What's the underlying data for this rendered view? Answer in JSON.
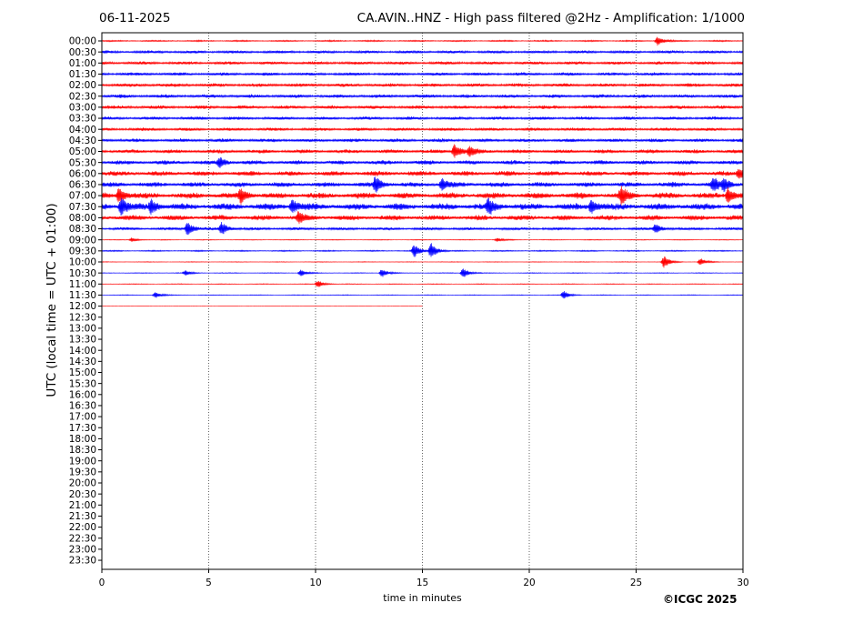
{
  "header": {
    "date": "06-11-2025",
    "title": "CA.AVIN..HNZ - High pass filtered @2Hz - Amplification: 1/1000"
  },
  "copyright": "©ICGC 2025",
  "chart_data": {
    "type": "line",
    "title": "CA.AVIN..HNZ - High pass filtered @2Hz - Amplification: 1/1000",
    "xlabel": "time in minutes",
    "ylabel": "UTC (local time = UTC + 01:00)",
    "xlim": [
      0,
      30
    ],
    "x_ticks": [
      0,
      5,
      10,
      15,
      20,
      25,
      30
    ],
    "grid": "vertical dotted at x ticks",
    "y_tick_labels": [
      "00:00",
      "00:30",
      "01:00",
      "01:30",
      "02:00",
      "02:30",
      "03:00",
      "03:30",
      "04:00",
      "04:30",
      "05:00",
      "05:30",
      "06:00",
      "06:30",
      "07:00",
      "07:30",
      "08:00",
      "08:30",
      "09:00",
      "09:30",
      "10:00",
      "10:30",
      "11:00",
      "11:30",
      "12:00",
      "12:30",
      "13:00",
      "13:30",
      "14:00",
      "14:30",
      "15:00",
      "15:30",
      "16:00",
      "16:30",
      "17:00",
      "17:30",
      "18:00",
      "18:30",
      "19:00",
      "19:30",
      "20:00",
      "20:30",
      "21:00",
      "21:30",
      "22:00",
      "22:30",
      "23:00",
      "23:30"
    ],
    "colors": {
      "even_rows": "#ff0000",
      "odd_rows": "#0000ff"
    },
    "series": [
      {
        "row": "00:00",
        "color": "red",
        "noise": 0.22,
        "start": 0,
        "end": 30,
        "events": [
          [
            26,
            1.2
          ]
        ]
      },
      {
        "row": "00:30",
        "color": "blue",
        "noise": 0.45,
        "start": 0,
        "end": 30,
        "events": []
      },
      {
        "row": "01:00",
        "color": "red",
        "noise": 0.5,
        "start": 0,
        "end": 30,
        "events": []
      },
      {
        "row": "01:30",
        "color": "blue",
        "noise": 0.5,
        "start": 0,
        "end": 30,
        "events": []
      },
      {
        "row": "02:00",
        "color": "red",
        "noise": 0.55,
        "start": 0,
        "end": 30,
        "events": []
      },
      {
        "row": "02:30",
        "color": "blue",
        "noise": 0.55,
        "start": 0,
        "end": 30,
        "events": []
      },
      {
        "row": "03:00",
        "color": "red",
        "noise": 0.55,
        "start": 0,
        "end": 30,
        "events": []
      },
      {
        "row": "03:30",
        "color": "blue",
        "noise": 0.5,
        "start": 0,
        "end": 30,
        "events": []
      },
      {
        "row": "04:00",
        "color": "red",
        "noise": 0.5,
        "start": 0,
        "end": 30,
        "events": []
      },
      {
        "row": "04:30",
        "color": "blue",
        "noise": 0.55,
        "start": 0,
        "end": 30,
        "events": []
      },
      {
        "row": "05:00",
        "color": "red",
        "noise": 0.6,
        "start": 0,
        "end": 30,
        "events": [
          [
            16.5,
            2.0
          ],
          [
            17.2,
            1.2
          ]
        ]
      },
      {
        "row": "05:30",
        "color": "blue",
        "noise": 0.65,
        "start": 0,
        "end": 30,
        "events": [
          [
            5.5,
            1.3
          ]
        ]
      },
      {
        "row": "06:00",
        "color": "red",
        "noise": 0.75,
        "start": 0,
        "end": 30,
        "events": [
          [
            29.8,
            1.4
          ]
        ]
      },
      {
        "row": "06:30",
        "color": "blue",
        "noise": 0.75,
        "start": 0,
        "end": 30,
        "events": [
          [
            12.8,
            2.0
          ],
          [
            15.9,
            1.5
          ],
          [
            28.6,
            1.8
          ],
          [
            29.1,
            1.5
          ]
        ]
      },
      {
        "row": "07:00",
        "color": "red",
        "noise": 0.9,
        "start": 0,
        "end": 30,
        "events": [
          [
            0.8,
            2.0
          ],
          [
            6.5,
            1.8
          ],
          [
            24.3,
            2.2
          ],
          [
            29.3,
            1.8
          ]
        ]
      },
      {
        "row": "07:30",
        "color": "blue",
        "noise": 1.0,
        "start": 0,
        "end": 30,
        "events": [
          [
            0.9,
            2.2
          ],
          [
            2.3,
            1.8
          ],
          [
            8.9,
            1.8
          ],
          [
            18.1,
            1.9
          ],
          [
            22.9,
            1.8
          ]
        ]
      },
      {
        "row": "08:00",
        "color": "red",
        "noise": 0.8,
        "start": 0,
        "end": 30,
        "events": [
          [
            9.2,
            1.4
          ]
        ]
      },
      {
        "row": "08:30",
        "color": "blue",
        "noise": 0.45,
        "start": 0,
        "end": 30,
        "events": [
          [
            4.0,
            1.8
          ],
          [
            5.6,
            1.6
          ],
          [
            25.9,
            1.2
          ]
        ]
      },
      {
        "row": "09:00",
        "color": "red",
        "noise": 0.12,
        "start": 0,
        "end": 30,
        "events": [
          [
            1.4,
            0.6
          ],
          [
            18.5,
            0.5
          ]
        ]
      },
      {
        "row": "09:30",
        "color": "blue",
        "noise": 0.2,
        "start": 0,
        "end": 30,
        "events": [
          [
            14.6,
            1.8
          ],
          [
            15.4,
            2.2
          ]
        ]
      },
      {
        "row": "10:00",
        "color": "red",
        "noise": 0.1,
        "start": 0,
        "end": 30,
        "events": [
          [
            26.3,
            1.6
          ],
          [
            28.0,
            1.0
          ]
        ]
      },
      {
        "row": "10:30",
        "color": "blue",
        "noise": 0.12,
        "start": 0,
        "end": 30,
        "events": [
          [
            3.9,
            0.7
          ],
          [
            9.3,
            0.9
          ],
          [
            13.1,
            1.2
          ],
          [
            16.9,
            1.4
          ]
        ]
      },
      {
        "row": "11:00",
        "color": "red",
        "noise": 0.12,
        "start": 0,
        "end": 30,
        "events": [
          [
            10.1,
            1.0
          ]
        ]
      },
      {
        "row": "11:30",
        "color": "blue",
        "noise": 0.12,
        "start": 0,
        "end": 30,
        "events": [
          [
            2.5,
            0.8
          ],
          [
            21.6,
            1.2
          ]
        ]
      },
      {
        "row": "12:00",
        "color": "red",
        "noise": 0.04,
        "start": 0,
        "end": 15,
        "events": []
      }
    ]
  }
}
